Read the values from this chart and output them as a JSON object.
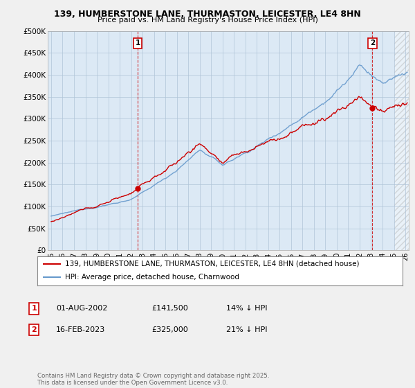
{
  "title": "139, HUMBERSTONE LANE, THURMASTON, LEICESTER, LE4 8HN",
  "subtitle": "Price paid vs. HM Land Registry's House Price Index (HPI)",
  "ylabel_ticks": [
    "£0",
    "£50K",
    "£100K",
    "£150K",
    "£200K",
    "£250K",
    "£300K",
    "£350K",
    "£400K",
    "£450K",
    "£500K"
  ],
  "ytick_vals": [
    0,
    50000,
    100000,
    150000,
    200000,
    250000,
    300000,
    350000,
    400000,
    450000,
    500000
  ],
  "xmin": 1994.7,
  "xmax": 2026.3,
  "ymin": 0,
  "ymax": 500000,
  "sale1_date": 2002.583,
  "sale1_price": 141500,
  "sale2_date": 2023.12,
  "sale2_price": 325000,
  "legend_label_red": "139, HUMBERSTONE LANE, THURMASTON, LEICESTER, LE4 8HN (detached house)",
  "legend_label_blue": "HPI: Average price, detached house, Charnwood",
  "annotation1_label": "1",
  "annotation1_date": "01-AUG-2002",
  "annotation1_price": "£141,500",
  "annotation1_hpi": "14% ↓ HPI",
  "annotation2_label": "2",
  "annotation2_date": "16-FEB-2023",
  "annotation2_price": "£325,000",
  "annotation2_hpi": "21% ↓ HPI",
  "footer": "Contains HM Land Registry data © Crown copyright and database right 2025.\nThis data is licensed under the Open Government Licence v3.0.",
  "line_color_red": "#cc0000",
  "line_color_blue": "#6699cc",
  "bg_color": "#f0f0f0",
  "plot_bg_color": "#dce9f5",
  "grid_color": "#b0c4d8",
  "hatch_start": 2025.0
}
